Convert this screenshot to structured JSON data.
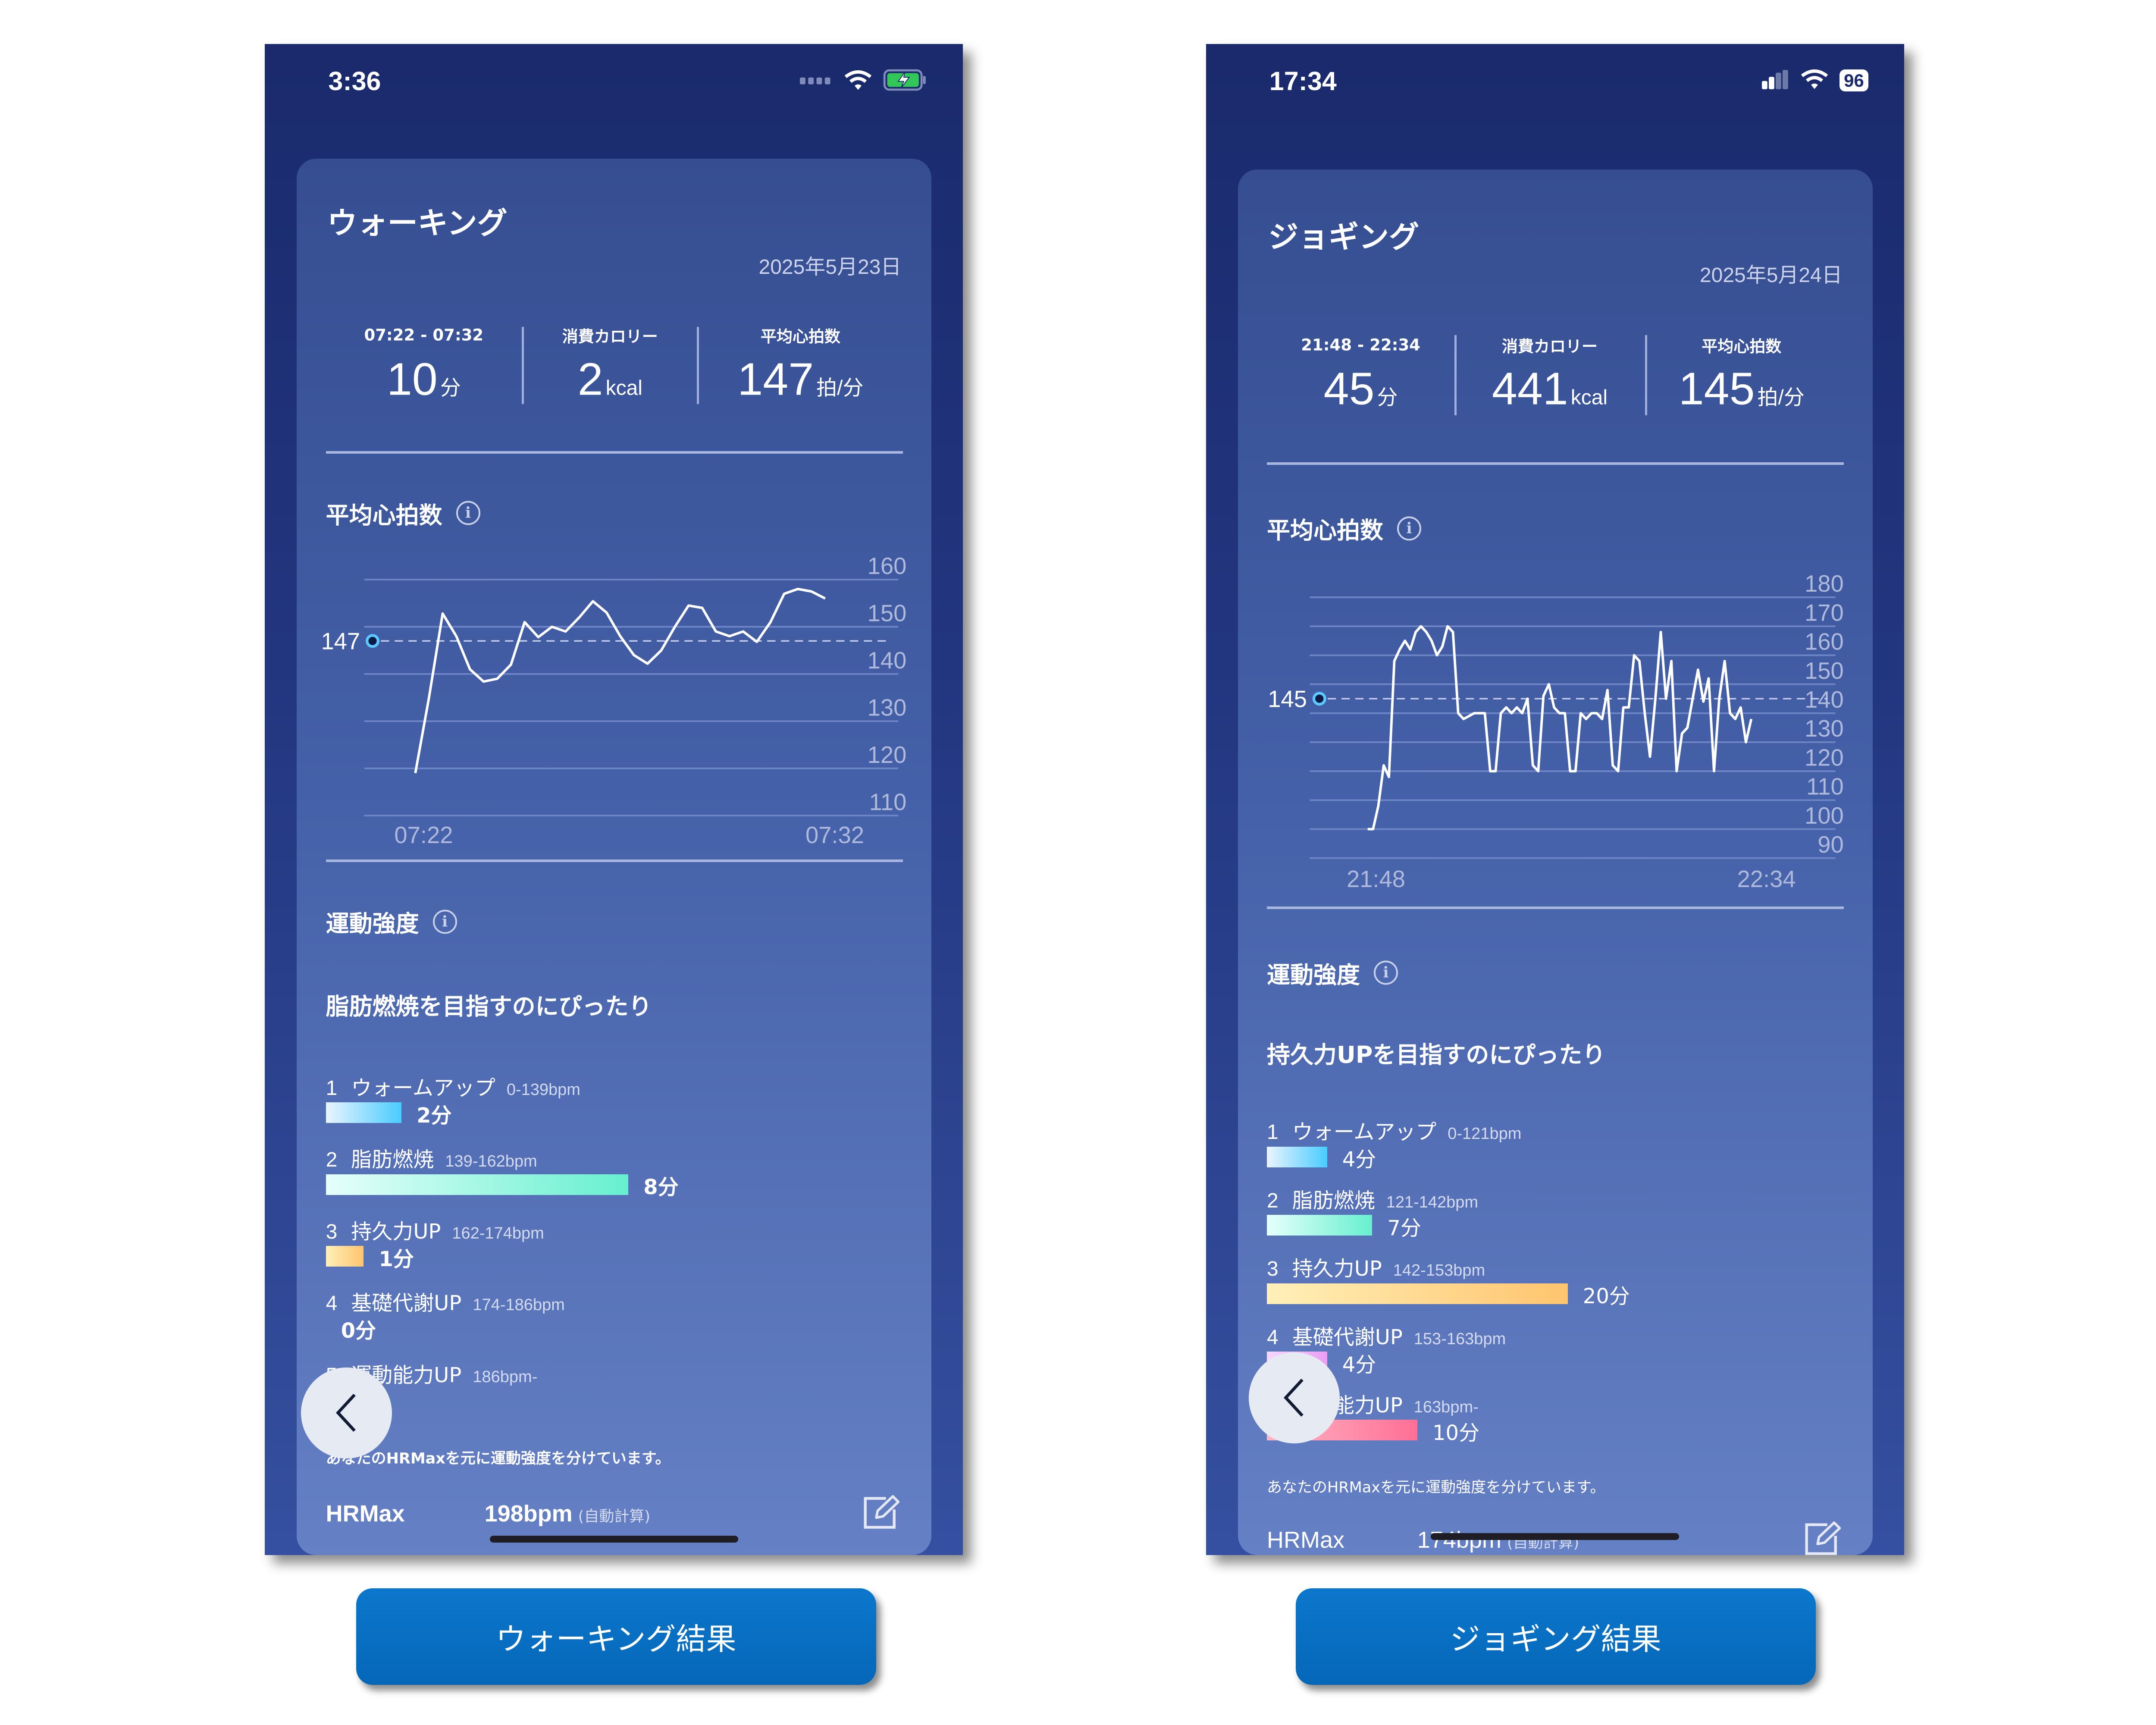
{
  "colors": {
    "accent_button": "#0a6fc2",
    "zone_warmup": "#4dcfff",
    "zone_fatburn": "#6ef0d0",
    "zone_endurance": "#ffc470",
    "zone_basal": "#e8a0f0",
    "zone_performance": "#ff6f95",
    "avg_dot": "#5bc8ff"
  },
  "phones": [
    {
      "status": {
        "time": "3:36",
        "signal_icon": "cellular-dots-icon",
        "wifi_icon": "wifi-icon",
        "battery_icon": "battery-charging-icon"
      },
      "title": "ウォーキング",
      "date": "2025年5月23日",
      "stats": [
        {
          "label": "07:22 - 07:32",
          "value": "10",
          "unit": "分"
        },
        {
          "label": "消費カロリー",
          "value": "2",
          "unit": "kcal"
        },
        {
          "label": "平均心拍数",
          "value": "147",
          "unit": "拍/分"
        }
      ],
      "hr_title": "平均心拍数",
      "intensity_title": "運動強度",
      "intensity_subtitle": "脂肪燃焼を目指すのにぴったり",
      "zones": [
        {
          "num": "1",
          "name": "ウォームアップ",
          "range": "0-139bpm",
          "minutes": 2,
          "value": "2分"
        },
        {
          "num": "2",
          "name": "脂肪燃焼",
          "range": "139-162bpm",
          "minutes": 8,
          "value": "8分"
        },
        {
          "num": "3",
          "name": "持久力UP",
          "range": "162-174bpm",
          "minutes": 1,
          "value": "1分"
        },
        {
          "num": "4",
          "name": "基礎代謝UP",
          "range": "174-186bpm",
          "minutes": 0,
          "value": "0分"
        },
        {
          "num": "5",
          "name": "運動能力UP",
          "range": "186bpm-"
        }
      ],
      "note": "あなたのHRMaxを元に運動強度を分けています。",
      "hrmax_label": "HRMax",
      "hrmax_value": "198bpm",
      "hrmax_auto": "(自動計算)",
      "result_button": "ウォーキング結果"
    },
    {
      "status": {
        "time": "17:34",
        "signal_icon": "cellular-bars-icon",
        "wifi_icon": "wifi-icon",
        "battery_icon": "battery-icon",
        "battery": "96"
      },
      "title": "ジョギング",
      "date": "2025年5月24日",
      "stats": [
        {
          "label": "21:48 - 22:34",
          "value": "45",
          "unit": "分"
        },
        {
          "label": "消費カロリー",
          "value": "441",
          "unit": "kcal"
        },
        {
          "label": "平均心拍数",
          "value": "145",
          "unit": "拍/分"
        }
      ],
      "hr_title": "平均心拍数",
      "intensity_title": "運動強度",
      "intensity_subtitle": "持久力UPを目指すのにぴったり",
      "zones": [
        {
          "num": "1",
          "name": "ウォームアップ",
          "range": "0-121bpm",
          "minutes": 4,
          "value": "4分"
        },
        {
          "num": "2",
          "name": "脂肪燃焼",
          "range": "121-142bpm",
          "minutes": 7,
          "value": "7分"
        },
        {
          "num": "3",
          "name": "持久力UP",
          "range": "142-153bpm",
          "minutes": 20,
          "value": "20分"
        },
        {
          "num": "4",
          "name": "基礎代謝UP",
          "range": "153-163bpm",
          "minutes": 4,
          "value": "4分"
        },
        {
          "num": "5",
          "name": "運動能力UP",
          "range": "163bpm-",
          "minutes": 10,
          "value": "10分"
        }
      ],
      "note": "あなたのHRMaxを元に運動強度を分けています。",
      "hrmax_label": "HRMax",
      "hrmax_value": "174bpm",
      "hrmax_auto": "(自動計算)",
      "result_button": "ジョギング結果"
    }
  ],
  "chart_data": [
    {
      "type": "line",
      "title": "平均心拍数",
      "x_tick_labels": [
        "07:22",
        "07:32"
      ],
      "y_ticks": [
        110,
        120,
        130,
        140,
        150,
        160
      ],
      "ylim": [
        110,
        160
      ],
      "grid": true,
      "average": {
        "value": 147,
        "label": "147"
      },
      "values": [
        119,
        135,
        152.8,
        148,
        141,
        138.4,
        139,
        142,
        151,
        147.8,
        150,
        149,
        152,
        155.4,
        153,
        148,
        144,
        142.2,
        145,
        150,
        154.5,
        154,
        149,
        148,
        149,
        146.8,
        151,
        157,
        158,
        157.5,
        156
      ]
    },
    {
      "type": "line",
      "title": "平均心拍数",
      "x_tick_labels": [
        "21:48",
        "22:34"
      ],
      "y_ticks": [
        90,
        100,
        110,
        120,
        130,
        140,
        150,
        160,
        170,
        180
      ],
      "ylim": [
        90,
        180
      ],
      "grid": true,
      "average": {
        "value": 145,
        "label": "145"
      },
      "values": [
        100,
        100,
        108,
        122,
        118,
        158,
        162,
        165,
        162,
        168,
        170,
        168,
        165,
        160,
        163,
        170,
        168,
        140,
        138,
        139,
        140,
        140,
        140,
        120,
        120,
        140,
        142,
        140,
        142,
        140,
        145,
        122,
        120,
        146,
        150,
        142,
        140,
        140,
        120,
        120,
        140,
        138,
        140,
        140,
        138,
        148,
        122,
        120,
        142,
        142,
        160,
        158,
        140,
        125,
        145,
        168,
        145,
        158,
        120,
        133,
        135,
        145,
        155,
        144,
        152,
        120,
        145,
        158,
        140,
        138,
        142,
        130,
        138
      ]
    }
  ]
}
